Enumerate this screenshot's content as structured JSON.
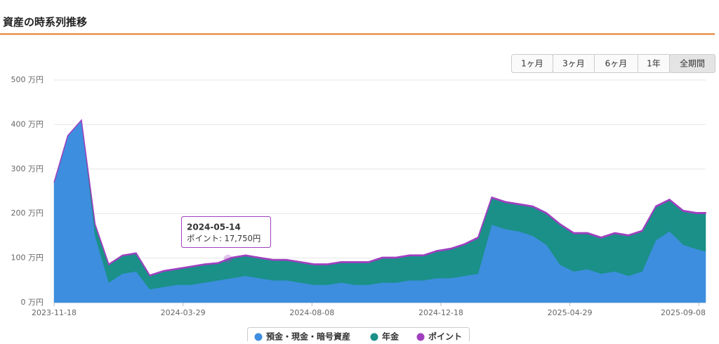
{
  "header": {
    "title": "資産の時系列推移"
  },
  "range_buttons": {
    "items": [
      "1ヶ月",
      "3ヶ月",
      "6ヶ月",
      "1年",
      "全期間"
    ],
    "active": 4
  },
  "chart_data": {
    "type": "stacked_area",
    "x": [
      "2023-11-18",
      "2023-12-02",
      "2023-12-16",
      "2023-12-30",
      "2024-01-13",
      "2024-01-27",
      "2024-02-10",
      "2024-02-24",
      "2024-03-09",
      "2024-03-23",
      "2024-04-06",
      "2024-04-20",
      "2024-05-04",
      "2024-05-18",
      "2024-06-01",
      "2024-06-15",
      "2024-06-29",
      "2024-07-13",
      "2024-07-27",
      "2024-08-10",
      "2024-08-24",
      "2024-09-07",
      "2024-09-21",
      "2024-10-05",
      "2024-10-19",
      "2024-11-02",
      "2024-11-16",
      "2024-11-30",
      "2024-12-14",
      "2024-12-28",
      "2025-01-11",
      "2025-01-25",
      "2025-02-08",
      "2025-02-22",
      "2025-03-08",
      "2025-03-22",
      "2025-04-05",
      "2025-04-19",
      "2025-05-03",
      "2025-05-17",
      "2025-05-31",
      "2025-06-14",
      "2025-06-28",
      "2025-07-12",
      "2025-07-26",
      "2025-08-09",
      "2025-08-23",
      "2025-09-06",
      "2025-09-15"
    ],
    "series": [
      {
        "name": "預金・現金・暗号資産",
        "color": "#3d8ede",
        "values": [
          270,
          375,
          410,
          150,
          45,
          65,
          70,
          30,
          35,
          40,
          40,
          45,
          50,
          55,
          60,
          55,
          50,
          50,
          45,
          40,
          40,
          45,
          40,
          40,
          45,
          45,
          50,
          50,
          55,
          55,
          60,
          65,
          175,
          165,
          160,
          150,
          130,
          85,
          70,
          75,
          65,
          70,
          60,
          70,
          140,
          160,
          130,
          120,
          115
        ]
      },
      {
        "name": "年金",
        "color": "#1a9088",
        "values": [
          0,
          0,
          0,
          25,
          40,
          40,
          40,
          30,
          35,
          35,
          40,
          40,
          38,
          45,
          45,
          45,
          45,
          45,
          45,
          45,
          45,
          45,
          50,
          50,
          55,
          55,
          55,
          55,
          60,
          65,
          70,
          80,
          60,
          60,
          60,
          65,
          70,
          90,
          85,
          80,
          80,
          85,
          90,
          90,
          75,
          70,
          75,
          80,
          85
        ]
      },
      {
        "name": "ポイント",
        "color": "#a040c0",
        "values": [
          0,
          0,
          0,
          1.5,
          1.6,
          1.6,
          1.6,
          1.7,
          1.7,
          1.7,
          1.7,
          1.8,
          1.8,
          1.8,
          1.8,
          1.8,
          1.8,
          1.8,
          1.9,
          1.9,
          1.9,
          1.9,
          1.9,
          1.9,
          2,
          2,
          2,
          2,
          2,
          2,
          2,
          2,
          2,
          2,
          2,
          2,
          2.1,
          2.1,
          2.1,
          2.1,
          2.1,
          2.1,
          2.1,
          2.2,
          2.2,
          2.2,
          2.2,
          2.2,
          2.2
        ]
      }
    ],
    "xlim": [
      "2023-11-18",
      "2025-09-15"
    ],
    "xticks": [
      "2023-11-18",
      "2024-03-29",
      "2024-08-08",
      "2024-12-18",
      "2025-04-29",
      "2025-09-08"
    ],
    "ylim": [
      0,
      500
    ],
    "yticks": [
      {
        "value": 0,
        "label": "0 万円"
      },
      {
        "value": 100,
        "label": "100 万円"
      },
      {
        "value": 200,
        "label": "200 万円"
      },
      {
        "value": 300,
        "label": "300 万円"
      },
      {
        "value": 400,
        "label": "400 万円"
      },
      {
        "value": 500,
        "label": "500 万円"
      }
    ],
    "grid": true,
    "tooltip": {
      "date": "2024-05-14",
      "text": "ポイント: 17,750円",
      "color": "#a040c0"
    }
  }
}
